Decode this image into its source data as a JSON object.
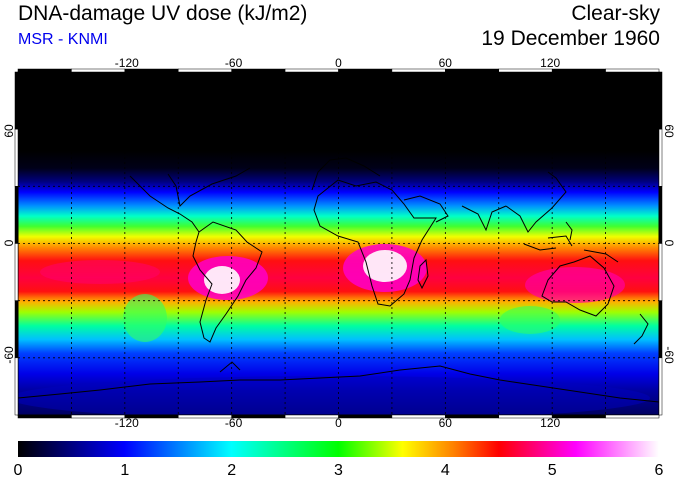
{
  "header": {
    "title": "DNA-damage UV dose (kJ/m2)",
    "source": "MSR - KNMI",
    "condition": "Clear-sky",
    "date": "19 December 1960"
  },
  "map": {
    "longitude_ticks": [
      "-120",
      "-60",
      "0",
      "60",
      "120"
    ],
    "latitude_ticks": [
      "60",
      "0",
      "-60"
    ],
    "longitude_values": [
      -120,
      -60,
      0,
      60,
      120
    ],
    "latitude_values": [
      60,
      0,
      -60
    ],
    "gridline_longitudes": [
      -150,
      -120,
      -90,
      -60,
      -30,
      0,
      30,
      60,
      90,
      120,
      150
    ],
    "gridline_latitudes": [
      60,
      30,
      0,
      -30,
      -60
    ],
    "extent": {
      "lon_min": -180,
      "lon_max": 180,
      "lat_min": -90,
      "lat_max": 90
    }
  },
  "colorbar": {
    "min": 0,
    "max": 6,
    "labels": [
      "0",
      "1",
      "2",
      "3",
      "4",
      "5",
      "6"
    ],
    "colors": [
      "#000000",
      "#0000ff",
      "#00ffff",
      "#00ff00",
      "#ffff00",
      "#ff0000",
      "#ff00ff",
      "#ffffff"
    ]
  }
}
